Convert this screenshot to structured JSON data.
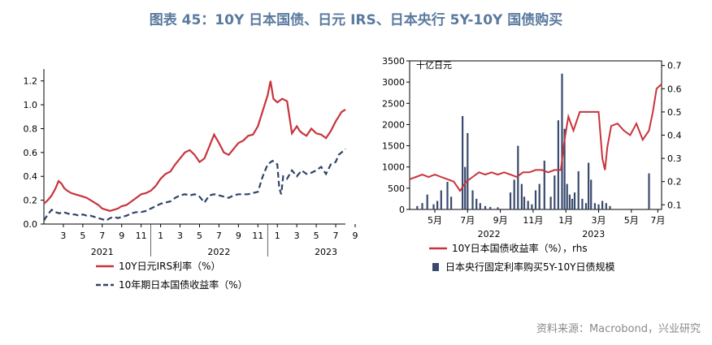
{
  "title": "图表 45：10Y 日本国债、日元 IRS、日本央行 5Y-10Y 国债购买",
  "source": "资料来源：Macrobond，兴业研究",
  "colors": {
    "red": "#c8343c",
    "navy": "#2f4468",
    "axis": "#000000",
    "bar": "#3a4a6e"
  },
  "chart_data": [
    {
      "type": "line",
      "y_ticks": [
        "0.0",
        "0.2",
        "0.4",
        "0.6",
        "0.8",
        "1.0",
        "1.2"
      ],
      "ylim": [
        0,
        1.3
      ],
      "x_ticks": [
        "3",
        "5",
        "7",
        "9",
        "11",
        "1",
        "3",
        "5",
        "7",
        "9",
        "11",
        "1",
        "3",
        "5",
        "7",
        "9"
      ],
      "x_years": [
        "2021",
        "2022",
        "2023"
      ],
      "xlim": [
        0,
        31
      ],
      "series": [
        {
          "name": "10Y日元IRS利率（%）",
          "style": "solid",
          "x": [
            0,
            0.4,
            0.8,
            1.2,
            1.5,
            1.8,
            2.1,
            2.4,
            2.8,
            3.2,
            3.6,
            4.0,
            4.4,
            4.8,
            5.2,
            5.6,
            6.0,
            6.4,
            6.8,
            7.2,
            7.6,
            8.0,
            8.5,
            9,
            9.5,
            10,
            10.5,
            11,
            11.5,
            12,
            12.5,
            13,
            13.5,
            14,
            14.5,
            15,
            15.5,
            16,
            16.5,
            17,
            17.5,
            18,
            18.5,
            19,
            19.5,
            20,
            20.5,
            21,
            21.5,
            22,
            22.5,
            23,
            23.3,
            23.6,
            24,
            24.5,
            25,
            25.5,
            26,
            26.3,
            26.6,
            27,
            27.5,
            28,
            28.5,
            29,
            29.5,
            30,
            30.3,
            30.6,
            31
          ],
          "y": [
            0.17,
            0.2,
            0.24,
            0.3,
            0.36,
            0.34,
            0.3,
            0.28,
            0.26,
            0.25,
            0.24,
            0.23,
            0.22,
            0.2,
            0.18,
            0.16,
            0.13,
            0.12,
            0.11,
            0.12,
            0.13,
            0.15,
            0.16,
            0.19,
            0.22,
            0.25,
            0.26,
            0.28,
            0.32,
            0.38,
            0.42,
            0.44,
            0.5,
            0.55,
            0.6,
            0.62,
            0.58,
            0.52,
            0.55,
            0.65,
            0.75,
            0.68,
            0.6,
            0.58,
            0.63,
            0.68,
            0.7,
            0.74,
            0.75,
            0.82,
            0.95,
            1.08,
            1.2,
            1.05,
            1.02,
            1.05,
            1.03,
            0.76,
            0.82,
            0.78,
            0.76,
            0.74,
            0.8,
            0.76,
            0.75,
            0.72,
            0.78,
            0.86,
            0.9,
            0.94,
            0.96
          ]
        },
        {
          "name": "10年期日本国债收益率（%）",
          "style": "dashed",
          "x": [
            0,
            0.4,
            0.8,
            1.2,
            1.6,
            2.0,
            2.4,
            2.8,
            3.2,
            3.6,
            4.0,
            4.4,
            4.8,
            5.2,
            5.6,
            6.0,
            6.4,
            6.8,
            7.2,
            7.6,
            8.0,
            8.5,
            9,
            9.5,
            10,
            10.5,
            11,
            11.5,
            12,
            12.5,
            13,
            13.5,
            14,
            14.5,
            15,
            15.5,
            16,
            16.5,
            17,
            17.5,
            18,
            18.5,
            19,
            19.5,
            20,
            20.5,
            21,
            21.5,
            22,
            22.5,
            23,
            23.5,
            24,
            24.2,
            24.4,
            24.6,
            25,
            25.5,
            26,
            26.5,
            27,
            27.5,
            28,
            28.5,
            29,
            29.5,
            30,
            30.3,
            30.6,
            31
          ],
          "y": [
            0.03,
            0.08,
            0.12,
            0.1,
            0.09,
            0.1,
            0.09,
            0.08,
            0.08,
            0.07,
            0.08,
            0.07,
            0.07,
            0.06,
            0.05,
            0.04,
            0.03,
            0.05,
            0.06,
            0.05,
            0.06,
            0.07,
            0.09,
            0.1,
            0.1,
            0.11,
            0.13,
            0.15,
            0.17,
            0.18,
            0.19,
            0.22,
            0.24,
            0.25,
            0.24,
            0.25,
            0.23,
            0.18,
            0.24,
            0.25,
            0.24,
            0.23,
            0.22,
            0.24,
            0.25,
            0.25,
            0.25,
            0.26,
            0.27,
            0.4,
            0.5,
            0.53,
            0.5,
            0.3,
            0.25,
            0.4,
            0.38,
            0.45,
            0.4,
            0.45,
            0.42,
            0.43,
            0.45,
            0.48,
            0.42,
            0.5,
            0.52,
            0.58,
            0.6,
            0.63
          ]
        }
      ]
    },
    {
      "type": "bar",
      "unit_label": "十亿日元",
      "y_left_ticks": [
        "0",
        "500",
        "1000",
        "1500",
        "2000",
        "2500",
        "3000",
        "3500"
      ],
      "ylim_left": [
        0,
        3500
      ],
      "y_right_ticks": [
        "0.1",
        "0.2",
        "0.3",
        "0.4",
        "0.5",
        "0.6",
        "0.7"
      ],
      "ylim_right": [
        0.08,
        0.72
      ],
      "x_ticks": [
        "5月",
        "7月",
        "9月",
        "11月",
        "1月",
        "3月",
        "5月",
        "7月"
      ],
      "x_years": [
        "2022",
        "2023"
      ],
      "xlim": [
        0,
        20
      ],
      "bar_series": {
        "name": "日本央行固定利率购买5Y-10Y日债规模",
        "x": [
          0.6,
          1.0,
          1.4,
          1.9,
          2.2,
          2.5,
          3.0,
          3.3,
          4.2,
          4.4,
          4.6,
          5.0,
          5.3,
          5.6,
          6.0,
          6.4,
          7.0,
          8.0,
          8.3,
          8.6,
          8.9,
          9.1,
          9.4,
          9.7,
          10.0,
          10.3,
          10.7,
          11.2,
          11.5,
          11.8,
          12.1,
          12.3,
          12.5,
          12.7,
          12.9,
          13.1,
          13.4,
          13.7,
          14.0,
          14.2,
          14.4,
          14.7,
          15.0,
          15.3,
          15.6,
          15.9,
          19.0
        ],
        "y": [
          80,
          150,
          350,
          120,
          200,
          450,
          650,
          300,
          2200,
          1000,
          1800,
          450,
          250,
          150,
          80,
          60,
          50,
          400,
          700,
          1500,
          600,
          300,
          200,
          120,
          450,
          600,
          1150,
          300,
          800,
          2100,
          3200,
          1900,
          600,
          350,
          250,
          400,
          900,
          250,
          150,
          1100,
          700,
          150,
          120,
          200,
          150,
          80,
          850
        ]
      },
      "line_series": {
        "name": "10Y日本国债收益率（%），rhs",
        "x": [
          0,
          0.5,
          1,
          1.5,
          2,
          2.5,
          3,
          3.5,
          4,
          4.5,
          5,
          5.5,
          6,
          6.5,
          7,
          7.5,
          8,
          8.5,
          9,
          9.5,
          10,
          10.5,
          11,
          11.5,
          12,
          12.3,
          12.6,
          13,
          13.5,
          14,
          14.5,
          15,
          15.3,
          15.5,
          15.7,
          16,
          16.5,
          17,
          17.5,
          18,
          18.5,
          19,
          19.3,
          19.6,
          20
        ],
        "y": [
          0.21,
          0.22,
          0.23,
          0.22,
          0.23,
          0.22,
          0.21,
          0.2,
          0.16,
          0.2,
          0.22,
          0.24,
          0.23,
          0.24,
          0.23,
          0.24,
          0.23,
          0.22,
          0.24,
          0.24,
          0.25,
          0.25,
          0.24,
          0.25,
          0.25,
          0.38,
          0.48,
          0.42,
          0.5,
          0.5,
          0.5,
          0.5,
          0.3,
          0.25,
          0.35,
          0.44,
          0.45,
          0.42,
          0.4,
          0.45,
          0.38,
          0.42,
          0.5,
          0.6,
          0.62
        ]
      }
    }
  ]
}
